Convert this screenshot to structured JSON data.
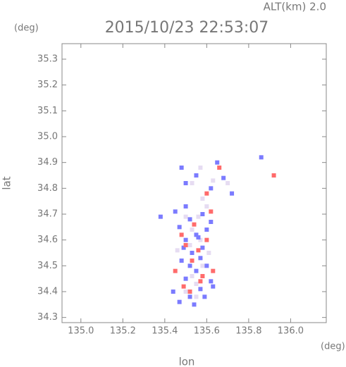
{
  "chart_data": {
    "type": "scatter",
    "title": "2015/10/23 22:53:07",
    "subtitle": "ALT(km) 2.0",
    "y_unit": "(deg)",
    "x_unit": "(deg)",
    "ylabel": "lat",
    "xlabel": "lon",
    "xlim": [
      134.91,
      136.17
    ],
    "ylim": [
      34.28,
      35.36
    ],
    "xticks": [
      {
        "value": 135.0,
        "label": "135.0"
      },
      135.2,
      135.4,
      135.6,
      135.8,
      {
        "value": 136.0,
        "label": "136.0"
      }
    ],
    "yticks": [
      35.3,
      35.2,
      35.1,
      {
        "value": 35.0,
        "label": "35.0"
      },
      34.9,
      34.8,
      34.7,
      34.6,
      34.5,
      34.4,
      34.3
    ],
    "series": [
      {
        "color": "#e6dcf2",
        "x": [
          135.5,
          135.55,
          135.53,
          135.58,
          135.52,
          135.57,
          135.53,
          135.56,
          135.5,
          135.6,
          135.58,
          135.53,
          135.63,
          135.7,
          135.57,
          135.46,
          135.55,
          135.61
        ],
        "values": [
          34.4,
          34.43,
          34.46,
          34.5,
          34.58,
          34.6,
          34.64,
          34.69,
          34.69,
          34.73,
          34.76,
          34.82,
          34.83,
          34.82,
          34.88,
          34.56,
          34.38,
          34.55
        ]
      },
      {
        "color": "#7b7bff",
        "x": [
          135.47,
          135.52,
          135.57,
          135.62,
          135.5,
          135.55,
          135.6,
          135.48,
          135.53,
          135.58,
          135.5,
          135.55,
          135.6,
          135.47,
          135.52,
          135.58,
          135.62,
          135.45,
          135.5,
          135.56,
          135.52,
          135.63,
          135.44,
          135.59,
          135.5,
          135.55,
          135.62,
          135.68,
          135.72,
          135.48,
          135.65,
          135.86,
          135.38,
          135.54,
          135.49,
          135.57
        ],
        "values": [
          34.36,
          34.38,
          34.41,
          34.44,
          34.45,
          34.48,
          34.5,
          34.52,
          34.55,
          34.57,
          34.6,
          34.62,
          34.64,
          34.65,
          34.68,
          34.7,
          34.67,
          34.71,
          34.73,
          34.61,
          34.5,
          34.42,
          34.4,
          34.38,
          34.82,
          34.85,
          34.8,
          34.84,
          34.78,
          34.88,
          34.9,
          34.92,
          34.69,
          34.35,
          34.57,
          34.53
        ]
      },
      {
        "color": "#ff6b6b",
        "x": [
          135.52,
          135.58,
          135.5,
          135.56,
          135.6,
          135.48,
          135.54,
          135.62,
          135.57,
          135.45,
          135.6,
          135.66,
          135.53,
          135.63,
          135.92,
          135.49
        ],
        "values": [
          34.4,
          34.46,
          34.58,
          34.56,
          34.6,
          34.62,
          34.66,
          34.71,
          34.44,
          34.48,
          34.78,
          34.88,
          34.52,
          34.48,
          34.85,
          34.42
        ]
      }
    ]
  }
}
